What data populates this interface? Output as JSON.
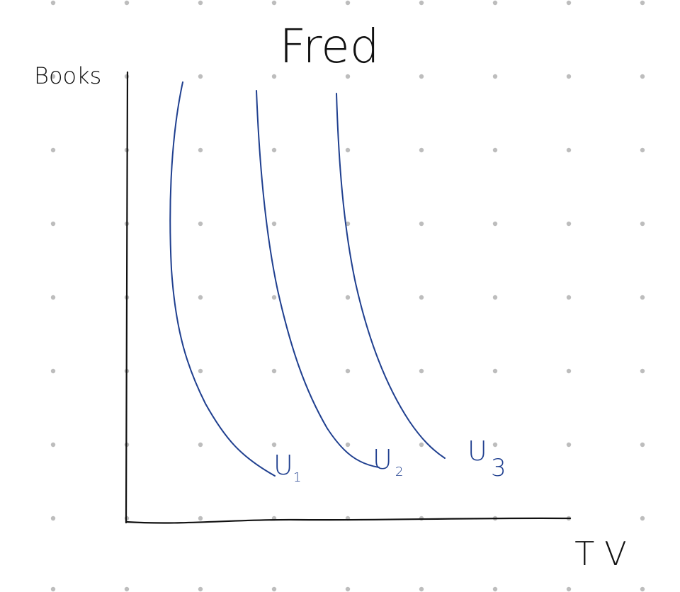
{
  "title": "Fred",
  "y_axis_label": "Books",
  "x_axis_label": "TV",
  "curves": [
    {
      "label": "U",
      "subscript": "1"
    },
    {
      "label": "U",
      "subscript": "2"
    },
    {
      "label": "U",
      "subscript": "3"
    }
  ],
  "colors": {
    "ink": "#111111",
    "curve": "#1f3f8f",
    "dots": "#bdbdbd",
    "background": "#ffffff"
  }
}
